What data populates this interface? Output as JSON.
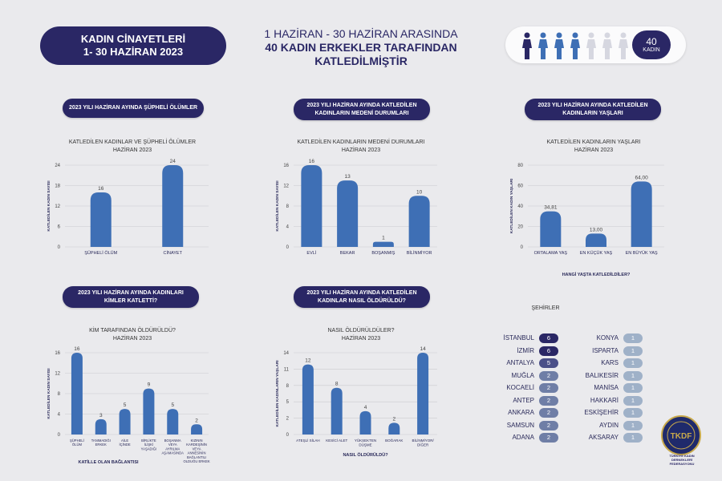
{
  "header": {
    "title_line1": "KADIN CİNAYETLERİ",
    "title_line2": "1- 30 HAZİRAN 2023",
    "center_line1": "1 HAZİRAN - 30 HAZİRAN ARASINDA",
    "center_line2": "40 KADIN ERKEKLER TARAFINDAN",
    "center_line3": "KATLEDİLMİŞTİR",
    "count_value": "40",
    "count_unit": "KADIN",
    "figure_colors": [
      "#2a2765",
      "#3e6fb5",
      "#3e6fb5",
      "#3e6fb5",
      "#d6d7e0",
      "#d6d7e0",
      "#d6d7e0"
    ]
  },
  "sections": {
    "s1_label": "2023 YILI HAZİRAN AYINDA ŞÜPHELİ ÖLÜMLER",
    "s2_label_1": "2023 YILI HAZİRAN AYINDA KATLEDİLEN",
    "s2_label_2": "KADINLARIN MEDENİ DURUMLARI",
    "s3_label_1": "2023 YILI HAZİRAN AYINDA KATLEDİLEN",
    "s3_label_2": "KADINLARIN YAŞLARI",
    "s4_label_1": "2023 YILI HAZİRAN AYINDA KADINLARI",
    "s4_label_2": "KİMLER KATLETTİ?",
    "s5_label_1": "2023 YILI HAZİRAN AYINDA KATLEDİLEN",
    "s5_label_2": "KADINLAR NASIL ÖLDÜRÜLDÜ?"
  },
  "chart_data": [
    {
      "type": "bar",
      "title_line1": "KATLEDİLEN KADINLAR VE ŞÜPHELİ ÖLÜMLER",
      "title_line2": "HAZİRAN 2023",
      "ylabel": "KATLEDİLEN KADIN SAYISI",
      "xlabel": "",
      "categories": [
        "ŞÜPHELİ ÖLÜM",
        "CİNAYET"
      ],
      "values": [
        16,
        24
      ],
      "value_labels": [
        "16",
        "24"
      ],
      "ylim": [
        0,
        24
      ],
      "yticks": [
        "0",
        "6",
        "12",
        "18",
        "24"
      ],
      "grid": true
    },
    {
      "type": "bar",
      "title_line1": "KATLEDİLEN KADINLARIN MEDENİ DURUMLARI",
      "title_line2": "HAZİRAN 2023",
      "ylabel": "KATLEDİLEN KADIN SAYISI",
      "xlabel": "",
      "categories": [
        "EVLİ",
        "BEKAR",
        "BOŞANMIŞ",
        "BİLİNMİYOR"
      ],
      "values": [
        16,
        13,
        1,
        10
      ],
      "value_labels": [
        "16",
        "13",
        "1",
        "10"
      ],
      "ylim": [
        0,
        16
      ],
      "yticks": [
        "0",
        "4",
        "8",
        "12",
        "16"
      ],
      "grid": true
    },
    {
      "type": "bar",
      "title_line1": "KATLEDİLEN KADINLARIN YAŞLARI",
      "title_line2": "HAZİRAN 2023",
      "ylabel": "KATLEDİLEN KADIN YAŞLARI",
      "xlabel": "HANGİ YAŞTA KATLEDİLDİLER?",
      "categories": [
        "ORTALAMA YAŞ",
        "EN KÜÇÜK YAŞ",
        "EN BÜYÜK YAŞ"
      ],
      "values": [
        34.81,
        13.0,
        64.0
      ],
      "value_labels": [
        "34,81",
        "13,00",
        "64,00"
      ],
      "ylim": [
        0,
        80
      ],
      "yticks": [
        "0",
        "20",
        "40",
        "60",
        "80"
      ],
      "grid": true
    },
    {
      "type": "bar",
      "title_line1": "KİM TARAFINDAN ÖLDÜRÜLDÜ?",
      "title_line2": "HAZİRAN 2023",
      "ylabel": "KATLEDİLEN KADIN SAYISI",
      "xlabel": "KATİLLE OLAN BAĞLANTISI",
      "categories": [
        [
          "ŞÜPHELİ",
          "ÖLÜM"
        ],
        [
          "TANIMADIĞI",
          "ERKEK"
        ],
        [
          "AİLE",
          "İÇİNDE"
        ],
        [
          "BİRLİKTE",
          "İLİŞKİ",
          "YAŞADIĞI"
        ],
        [
          "BOŞANMA",
          "VEYA",
          "AYRILMA",
          "AŞAMASINDA"
        ],
        [
          "KIZININ",
          "KARDEŞİNİN",
          "VEYA",
          "ANNESİNİN",
          "BAĞLANTILI",
          "OLDUĞU ERKEK"
        ]
      ],
      "values": [
        16,
        3,
        5,
        9,
        5,
        2
      ],
      "value_labels": [
        "16",
        "3",
        "5",
        "9",
        "5",
        "2"
      ],
      "ylim": [
        0,
        16
      ],
      "yticks": [
        "0",
        "4",
        "8",
        "12",
        "16"
      ],
      "grid": true
    },
    {
      "type": "bar",
      "title_line1": "NASIL ÖLDÜRÜLDÜLER?",
      "title_line2": "HAZİRAN 2023",
      "ylabel": "KATLEDİLEN KADINLARIN YAŞLARI",
      "xlabel": "NASIL ÖLDÜRÜLDÜ?",
      "categories": [
        [
          "ATEŞLİ SİLAH"
        ],
        [
          "KESİCİ ALET"
        ],
        [
          "YÜKSEKTEN",
          "DÜŞME"
        ],
        [
          "BOĞARAK"
        ],
        [
          "BİLİNMİYOR/",
          "DİĞER"
        ]
      ],
      "values": [
        12,
        8,
        4,
        2,
        14
      ],
      "value_labels": [
        "12",
        "8",
        "4",
        "2",
        "14"
      ],
      "ylim": [
        0,
        14
      ],
      "yticks": [
        "0",
        "2",
        "5",
        "8",
        "11",
        "14"
      ],
      "grid": true
    }
  ],
  "cities": {
    "title": "ŞEHİRLER",
    "left": [
      {
        "name": "İSTANBUL",
        "count": "6",
        "color": "#2a2765"
      },
      {
        "name": "İZMİR",
        "count": "6",
        "color": "#2a2765"
      },
      {
        "name": "ANTALYA",
        "count": "5",
        "color": "#4a4f88"
      },
      {
        "name": "MUĞLA",
        "count": "2",
        "color": "#6f7ea6"
      },
      {
        "name": "KOCAELİ",
        "count": "2",
        "color": "#6f7ea6"
      },
      {
        "name": "ANTEP",
        "count": "2",
        "color": "#6f7ea6"
      },
      {
        "name": "ANKARA",
        "count": "2",
        "color": "#6f7ea6"
      },
      {
        "name": "SAMSUN",
        "count": "2",
        "color": "#6f7ea6"
      },
      {
        "name": "ADANA",
        "count": "2",
        "color": "#6f7ea6"
      }
    ],
    "right": [
      {
        "name": "KONYA",
        "count": "1",
        "color": "#9fb1c8"
      },
      {
        "name": "ISPARTA",
        "count": "1",
        "color": "#9fb1c8"
      },
      {
        "name": "KARS",
        "count": "1",
        "color": "#9fb1c8"
      },
      {
        "name": "BALIKESİR",
        "count": "1",
        "color": "#9fb1c8"
      },
      {
        "name": "MANİSA",
        "count": "1",
        "color": "#9fb1c8"
      },
      {
        "name": "HAKKARİ",
        "count": "1",
        "color": "#9fb1c8"
      },
      {
        "name": "ESKİŞEHİR",
        "count": "1",
        "color": "#9fb1c8"
      },
      {
        "name": "AYDIN",
        "count": "1",
        "color": "#9fb1c8"
      },
      {
        "name": "AKSARAY",
        "count": "1",
        "color": "#9fb1c8"
      }
    ]
  },
  "logo": {
    "text": "TÜRKİYE KADIN DERNEKLERİ FEDERASYONU",
    "mark": "TKDF"
  },
  "colors": {
    "bar": "#3e6fb5",
    "navy": "#2a2765",
    "grid": "#c9c9cf"
  }
}
